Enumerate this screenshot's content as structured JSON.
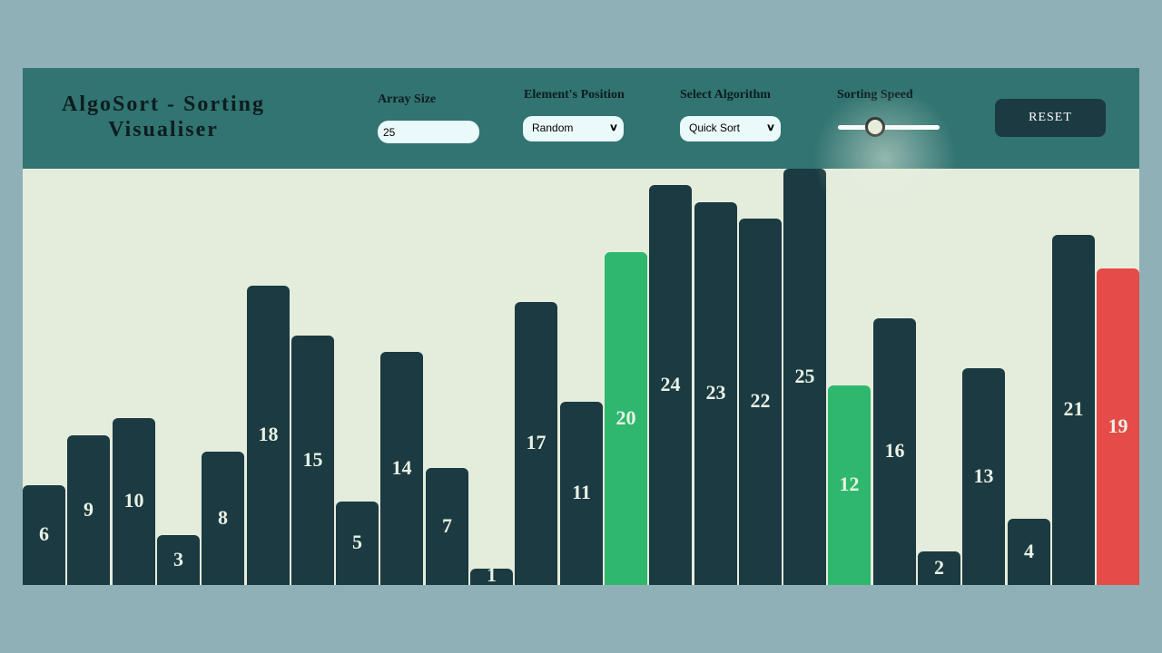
{
  "header": {
    "title": "AlgoSort - Sorting Visualiser",
    "array_size": {
      "label": "Array Size",
      "value": "25"
    },
    "element_position": {
      "label": "Element's Position",
      "selected": "Random"
    },
    "algorithm": {
      "label": "Select Algorithm",
      "selected": "Quick Sort"
    },
    "speed": {
      "label": "Sorting Speed",
      "level": 0.33
    },
    "reset_label": "RESET"
  },
  "colors": {
    "header_bg": "#317471",
    "stage_bg": "#e4ecdc",
    "bar_default": "#1b3a41",
    "bar_green": "#2fb86d",
    "bar_red": "#e54b48"
  },
  "bars": [
    {
      "value": 6,
      "state": "default"
    },
    {
      "value": 9,
      "state": "default"
    },
    {
      "value": 10,
      "state": "default"
    },
    {
      "value": 3,
      "state": "default"
    },
    {
      "value": 8,
      "state": "default"
    },
    {
      "value": 18,
      "state": "default"
    },
    {
      "value": 15,
      "state": "default"
    },
    {
      "value": 5,
      "state": "default"
    },
    {
      "value": 14,
      "state": "default"
    },
    {
      "value": 7,
      "state": "default"
    },
    {
      "value": 1,
      "state": "default"
    },
    {
      "value": 17,
      "state": "default"
    },
    {
      "value": 11,
      "state": "default"
    },
    {
      "value": 20,
      "state": "green"
    },
    {
      "value": 24,
      "state": "default"
    },
    {
      "value": 23,
      "state": "default"
    },
    {
      "value": 22,
      "state": "default"
    },
    {
      "value": 25,
      "state": "default"
    },
    {
      "value": 12,
      "state": "green"
    },
    {
      "value": 16,
      "state": "default"
    },
    {
      "value": 2,
      "state": "default"
    },
    {
      "value": 13,
      "state": "default"
    },
    {
      "value": 4,
      "state": "default"
    },
    {
      "value": 21,
      "state": "default"
    },
    {
      "value": 19,
      "state": "red"
    }
  ]
}
